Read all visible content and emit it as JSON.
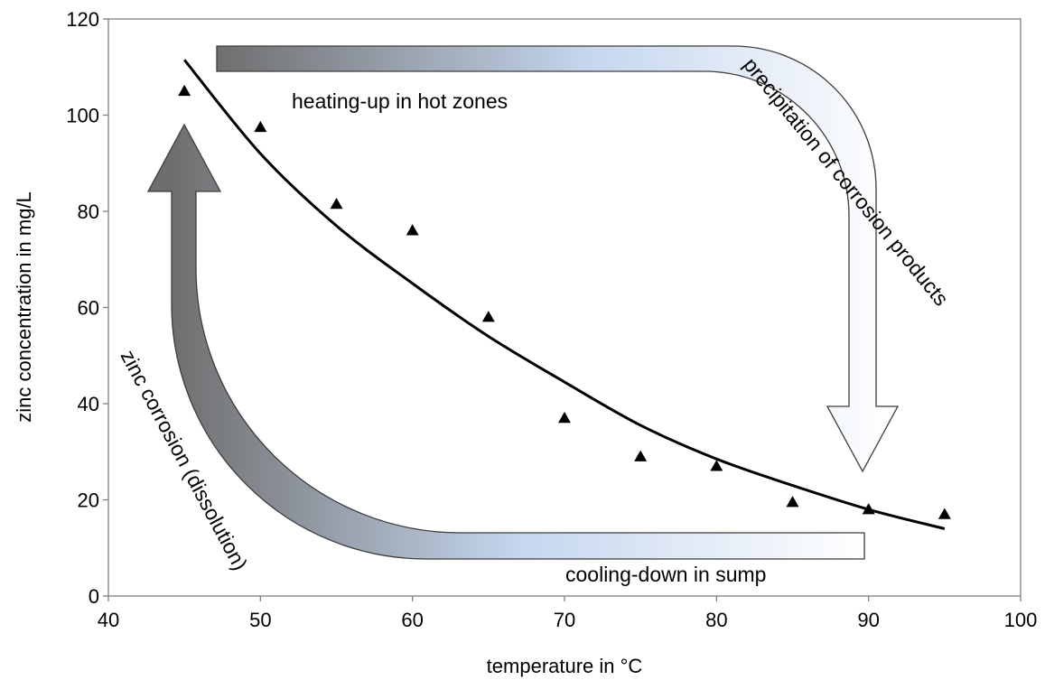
{
  "chart_data": {
    "type": "scatter",
    "title": "",
    "xlabel": "temperature in °C",
    "ylabel": "zinc concentration in mg/L",
    "xlim": [
      40,
      100
    ],
    "ylim": [
      0,
      120
    ],
    "xticks": [
      40,
      50,
      60,
      70,
      80,
      90,
      100
    ],
    "yticks": [
      0,
      20,
      40,
      60,
      80,
      100,
      120
    ],
    "grid": false,
    "series": [
      {
        "marker": "triangle",
        "color": "#000000",
        "x": [
          45,
          50,
          55,
          60,
          65,
          70,
          75,
          80,
          85,
          90,
          95
        ],
        "y": [
          105,
          97.5,
          81.5,
          76,
          58,
          37,
          29,
          27,
          19.5,
          18,
          17
        ]
      }
    ],
    "trendline": {
      "type": "exponential",
      "color": "#000000",
      "x": [
        45,
        50,
        55,
        60,
        65,
        70,
        75,
        80,
        85,
        90,
        95
      ],
      "y": [
        111.5,
        92,
        77,
        65,
        54,
        44.5,
        35.5,
        28.5,
        23,
        18,
        14
      ]
    },
    "annotations": {
      "heating": "heating-up  in hot zones",
      "precipitation": "precipitation of corrosion products",
      "cooling": "cooling-down  in sump",
      "corrosion": "zinc  corrosion (dissolution)"
    },
    "colors": {
      "arrow_dark": "#6e6e6e",
      "arrow_light": "#c5d6ee",
      "arrow_white": "#ffffff",
      "arrow_stroke": "#3c3c3c"
    }
  }
}
